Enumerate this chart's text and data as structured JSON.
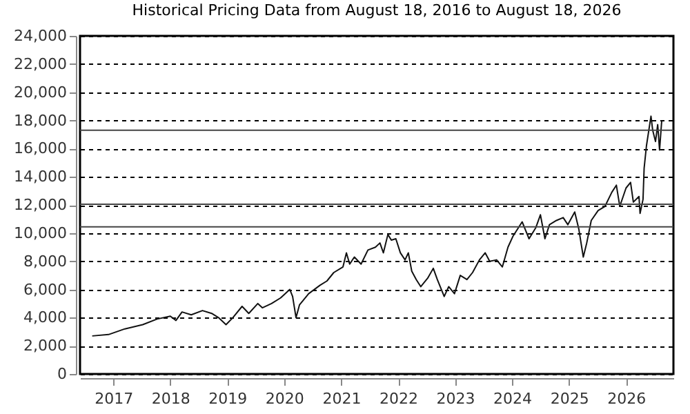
{
  "chart_data": {
    "type": "line",
    "title": "Historical Pricing Data from August 18, 2016 to August 18, 2026",
    "x": [
      "2016-08-18",
      "2016-12-01",
      "2017-03-15",
      "2017-07-08",
      "2017-10-08",
      "2018-01-01",
      "2018-02-06",
      "2018-03-17",
      "2018-05-15",
      "2018-07-26",
      "2018-09-23",
      "2018-11-06",
      "2018-12-24",
      "2019-02-06",
      "2019-04-06",
      "2019-05-19",
      "2019-07-16",
      "2019-08-14",
      "2019-10-12",
      "2019-12-09",
      "2020-02-06",
      "2020-02-24",
      "2020-03-17",
      "2020-04-08",
      "2020-06-06",
      "2020-08-18",
      "2020-10-01",
      "2020-11-14",
      "2021-01-12",
      "2021-02-03",
      "2021-02-24",
      "2021-03-26",
      "2021-05-08",
      "2021-06-21",
      "2021-08-08",
      "2021-09-06",
      "2021-09-28",
      "2021-10-27",
      "2021-11-18",
      "2021-12-17",
      "2022-01-15",
      "2022-02-14",
      "2022-03-07",
      "2022-03-29",
      "2022-04-27",
      "2022-05-26",
      "2022-07-09",
      "2022-08-14",
      "2022-09-09",
      "2022-10-23",
      "2022-11-21",
      "2022-12-28",
      "2023-02-03",
      "2023-03-18",
      "2023-04-23",
      "2023-06-06",
      "2023-07-13",
      "2023-08-11",
      "2023-09-24",
      "2023-10-31",
      "2023-12-06",
      "2024-01-08",
      "2024-03-06",
      "2024-04-19",
      "2024-06-02",
      "2024-07-01",
      "2024-07-30",
      "2024-08-28",
      "2024-10-12",
      "2024-11-24",
      "2024-12-24",
      "2025-02-06",
      "2025-03-04",
      "2025-04-02",
      "2025-04-24",
      "2025-05-23",
      "2025-07-06",
      "2025-08-19",
      "2025-10-02",
      "2025-10-31",
      "2025-11-22",
      "2026-01-01",
      "2026-01-30",
      "2026-02-17",
      "2026-03-25",
      "2026-04-01",
      "2026-04-20",
      "2026-04-27",
      "2026-05-12",
      "2026-06-10",
      "2026-06-21",
      "2026-07-09",
      "2026-07-23",
      "2026-08-04",
      "2026-08-18"
    ],
    "series": [
      {
        "color": "#111111",
        "values": [
          2700,
          2800,
          3200,
          3500,
          3900,
          4100,
          3800,
          4400,
          4200,
          4500,
          4300,
          4000,
          3500,
          4000,
          4800,
          4300,
          5000,
          4700,
          5000,
          5400,
          6000,
          5500,
          4000,
          4900,
          5700,
          6300,
          6600,
          7200,
          7600,
          8600,
          7800,
          8300,
          7800,
          8800,
          9000,
          9300,
          8600,
          9900,
          9500,
          9600,
          8600,
          8100,
          8600,
          7300,
          6700,
          6200,
          6800,
          7500,
          6700,
          5500,
          6200,
          5700,
          7000,
          6700,
          7200,
          8100,
          8600,
          8000,
          8100,
          7600,
          9000,
          9800,
          10800,
          9600,
          10400,
          11300,
          9600,
          10600,
          10900,
          11100,
          10600,
          11500,
          10300,
          8300,
          9300,
          10900,
          11600,
          11900,
          12900,
          13400,
          11900,
          13200,
          13600,
          12200,
          12600,
          11400,
          12400,
          14600,
          16200,
          18300,
          17300,
          16500,
          17700,
          15900,
          18000
        ]
      }
    ],
    "xlim": [
      "2016-06-01",
      "2026-11-01"
    ],
    "xticks": [
      "2017",
      "2018",
      "2019",
      "2020",
      "2021",
      "2022",
      "2023",
      "2024",
      "2025",
      "2026"
    ],
    "ylim": [
      0,
      24000
    ],
    "yticks": [
      0,
      {
        "value": 2000,
        "label": "2,000"
      },
      {
        "value": 4000,
        "label": "4,000"
      },
      {
        "value": 6000,
        "label": "6,000"
      },
      {
        "value": 8000,
        "label": "8,000"
      },
      {
        "value": 10000,
        "label": "10,000"
      },
      {
        "value": 12000,
        "label": "12,000"
      },
      {
        "value": 14000,
        "label": "14,000"
      },
      {
        "value": 16000,
        "label": "16,000"
      },
      {
        "value": 18000,
        "label": "18,000"
      },
      {
        "value": 20000,
        "label": "20,000"
      },
      {
        "value": 22000,
        "label": "22,000"
      },
      {
        "value": 24000,
        "label": "24,000"
      }
    ],
    "grid": "y",
    "ref_lines": [
      {
        "axis": "y",
        "value": 17300,
        "color": "#444444"
      },
      {
        "axis": "y",
        "value": 12050,
        "color": "#444444"
      },
      {
        "axis": "y",
        "value": 10450,
        "color": "#444444"
      }
    ],
    "marker": "none",
    "line_style": "solid"
  }
}
